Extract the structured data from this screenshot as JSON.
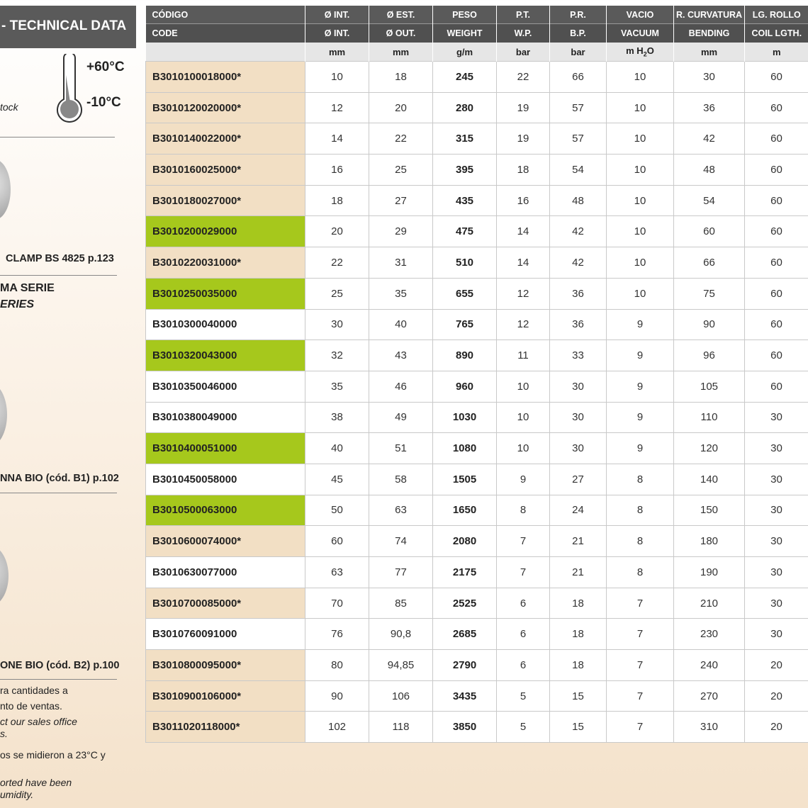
{
  "left_panel": {
    "title": "- TECHNICAL DATA",
    "temp_max": "+60°C",
    "temp_min": "-10°C",
    "stock_note": "tock",
    "clamp_ref": "CLAMP BS 4825 p.123",
    "series_es": "MA SERIE",
    "series_en": "ERIES",
    "ref_b1": "NNA BIO (cód. B1) p.102",
    "ref_b2": "ONE BIO (cód. B2) p.100",
    "notes": [
      "ra cantidades a",
      "nto de ventas.",
      "ct our sales office",
      "s.",
      "os se midieron a 23°C y",
      "orted have been",
      "umidity."
    ]
  },
  "table": {
    "header_es": [
      "CÓDIGO",
      "Ø INT.",
      "Ø EST.",
      "PESO",
      "P.T.",
      "P.R.",
      "VACIO",
      "R. CURVATURA",
      "LG. ROLLO"
    ],
    "header_en": [
      "CODE",
      "Ø INT.",
      "Ø OUT.",
      "WEIGHT",
      "W.P.",
      "B.P.",
      "VACUUM",
      "BENDING",
      "COIL LGTH."
    ],
    "units": [
      "mm",
      "mm",
      "g/m",
      "bar",
      "bar",
      [
        "m H",
        "2",
        "O"
      ],
      "mm",
      "m"
    ],
    "highlight_colors": {
      "beige": "#f2dfc4",
      "green": "#a6c81c",
      "white": "#ffffff"
    },
    "rows": [
      {
        "code": "B3010100018000*",
        "highlight": "beige",
        "cells": [
          "10",
          "18",
          "245",
          "22",
          "66",
          "10",
          "30",
          "60"
        ]
      },
      {
        "code": "B3010120020000*",
        "highlight": "beige",
        "cells": [
          "12",
          "20",
          "280",
          "19",
          "57",
          "10",
          "36",
          "60"
        ]
      },
      {
        "code": "B3010140022000*",
        "highlight": "beige",
        "cells": [
          "14",
          "22",
          "315",
          "19",
          "57",
          "10",
          "42",
          "60"
        ]
      },
      {
        "code": "B3010160025000*",
        "highlight": "beige",
        "cells": [
          "16",
          "25",
          "395",
          "18",
          "54",
          "10",
          "48",
          "60"
        ]
      },
      {
        "code": "B3010180027000*",
        "highlight": "beige",
        "cells": [
          "18",
          "27",
          "435",
          "16",
          "48",
          "10",
          "54",
          "60"
        ]
      },
      {
        "code": "B3010200029000",
        "highlight": "green",
        "cells": [
          "20",
          "29",
          "475",
          "14",
          "42",
          "10",
          "60",
          "60"
        ]
      },
      {
        "code": "B3010220031000*",
        "highlight": "beige",
        "cells": [
          "22",
          "31",
          "510",
          "14",
          "42",
          "10",
          "66",
          "60"
        ]
      },
      {
        "code": "B3010250035000",
        "highlight": "green",
        "cells": [
          "25",
          "35",
          "655",
          "12",
          "36",
          "10",
          "75",
          "60"
        ]
      },
      {
        "code": "B3010300040000",
        "highlight": "white",
        "cells": [
          "30",
          "40",
          "765",
          "12",
          "36",
          "9",
          "90",
          "60"
        ]
      },
      {
        "code": "B3010320043000",
        "highlight": "green",
        "cells": [
          "32",
          "43",
          "890",
          "11",
          "33",
          "9",
          "96",
          "60"
        ]
      },
      {
        "code": "B3010350046000",
        "highlight": "white",
        "cells": [
          "35",
          "46",
          "960",
          "10",
          "30",
          "9",
          "105",
          "60"
        ]
      },
      {
        "code": "B3010380049000",
        "highlight": "white",
        "cells": [
          "38",
          "49",
          "1030",
          "10",
          "30",
          "9",
          "110",
          "30"
        ]
      },
      {
        "code": "B3010400051000",
        "highlight": "green",
        "cells": [
          "40",
          "51",
          "1080",
          "10",
          "30",
          "9",
          "120",
          "30"
        ]
      },
      {
        "code": "B3010450058000",
        "highlight": "white",
        "cells": [
          "45",
          "58",
          "1505",
          "9",
          "27",
          "8",
          "140",
          "30"
        ]
      },
      {
        "code": "B3010500063000",
        "highlight": "green",
        "cells": [
          "50",
          "63",
          "1650",
          "8",
          "24",
          "8",
          "150",
          "30"
        ]
      },
      {
        "code": "B3010600074000*",
        "highlight": "beige",
        "cells": [
          "60",
          "74",
          "2080",
          "7",
          "21",
          "8",
          "180",
          "30"
        ]
      },
      {
        "code": "B3010630077000",
        "highlight": "white",
        "cells": [
          "63",
          "77",
          "2175",
          "7",
          "21",
          "8",
          "190",
          "30"
        ]
      },
      {
        "code": "B3010700085000*",
        "highlight": "beige",
        "cells": [
          "70",
          "85",
          "2525",
          "6",
          "18",
          "7",
          "210",
          "30"
        ]
      },
      {
        "code": "B3010760091000",
        "highlight": "white",
        "cells": [
          "76",
          "90,8",
          "2685",
          "6",
          "18",
          "7",
          "230",
          "30"
        ]
      },
      {
        "code": "B3010800095000*",
        "highlight": "beige",
        "cells": [
          "80",
          "94,85",
          "2790",
          "6",
          "18",
          "7",
          "240",
          "20"
        ]
      },
      {
        "code": "B3010900106000*",
        "highlight": "beige",
        "cells": [
          "90",
          "106",
          "3435",
          "5",
          "15",
          "7",
          "270",
          "20"
        ]
      },
      {
        "code": "B3011020118000*",
        "highlight": "beige",
        "cells": [
          "102",
          "118",
          "3850",
          "5",
          "15",
          "7",
          "310",
          "20"
        ]
      }
    ]
  }
}
